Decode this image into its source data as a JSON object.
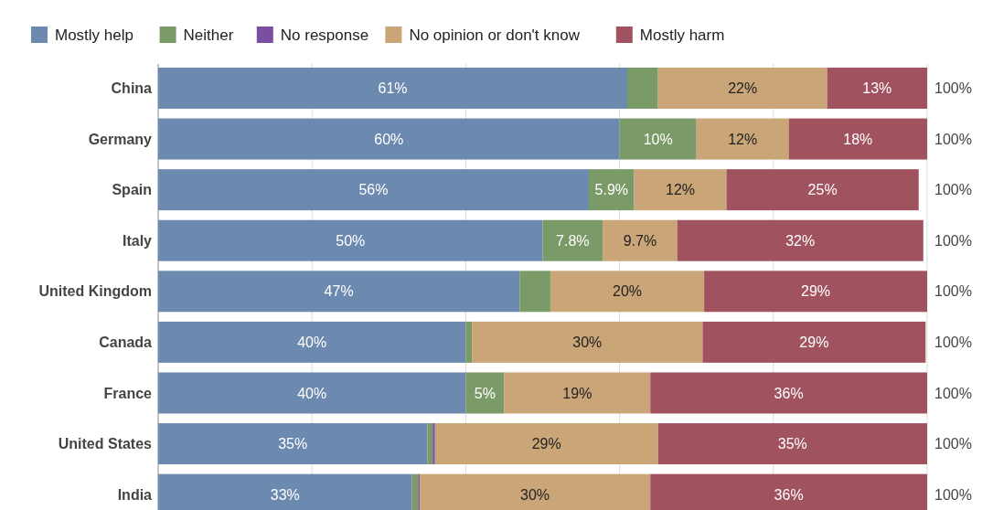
{
  "chart_data": {
    "type": "bar",
    "orientation": "horizontal",
    "stacked": true,
    "categories": [
      "China",
      "Germany",
      "Spain",
      "Italy",
      "United Kingdom",
      "Canada",
      "France",
      "United States",
      "India"
    ],
    "series": [
      {
        "name": "Mostly help",
        "color": "#6c89b0",
        "values": [
          61,
          60,
          56,
          50,
          47,
          40,
          40,
          35,
          33
        ],
        "value_labels": [
          "61%",
          "60%",
          "56%",
          "50%",
          "47%",
          "40%",
          "40%",
          "35%",
          "33%"
        ]
      },
      {
        "name": "Neither",
        "color": "#7a9a68",
        "values": [
          4,
          10,
          5.9,
          7.8,
          4,
          0.8,
          5,
          0.7,
          0.8
        ],
        "value_labels": [
          null,
          "10%",
          "5.9%",
          "7.8%",
          null,
          null,
          "5%",
          null,
          null
        ]
      },
      {
        "name": "No response",
        "color": "#7a4fa0",
        "values": [
          0,
          0,
          0,
          0,
          0,
          0,
          0,
          0.3,
          0.2
        ],
        "value_labels": [
          null,
          null,
          null,
          null,
          null,
          null,
          null,
          null,
          null
        ]
      },
      {
        "name": "No opinion or don't know",
        "color": "#c9a577",
        "values": [
          22,
          12,
          12,
          9.7,
          20,
          30,
          19,
          29,
          30
        ],
        "value_labels": [
          "22%",
          "12%",
          "12%",
          "9.7%",
          "20%",
          "30%",
          "19%",
          "29%",
          "30%"
        ]
      },
      {
        "name": "Mostly harm",
        "color": "#a0525e",
        "values": [
          13,
          18,
          25,
          32,
          29,
          29,
          36,
          35,
          36
        ],
        "value_labels": [
          "13%",
          "18%",
          "25%",
          "32%",
          "29%",
          "29%",
          "36%",
          "35%",
          "36%"
        ]
      }
    ],
    "totals": [
      "100%",
      "100%",
      "100%",
      "100%",
      "100%",
      "100%",
      "100%",
      "100%",
      "100%"
    ],
    "xlim": [
      0,
      100
    ],
    "xticks": [
      {
        "value": 0,
        "label": null
      },
      {
        "value": 20,
        "label": null
      },
      {
        "value": 40,
        "label": null
      },
      {
        "value": 60,
        "label": null
      },
      {
        "value": 80,
        "label": null
      },
      {
        "value": 100,
        "label": null
      }
    ],
    "grid": "x",
    "legend": "top left",
    "tick_labels": "y"
  }
}
